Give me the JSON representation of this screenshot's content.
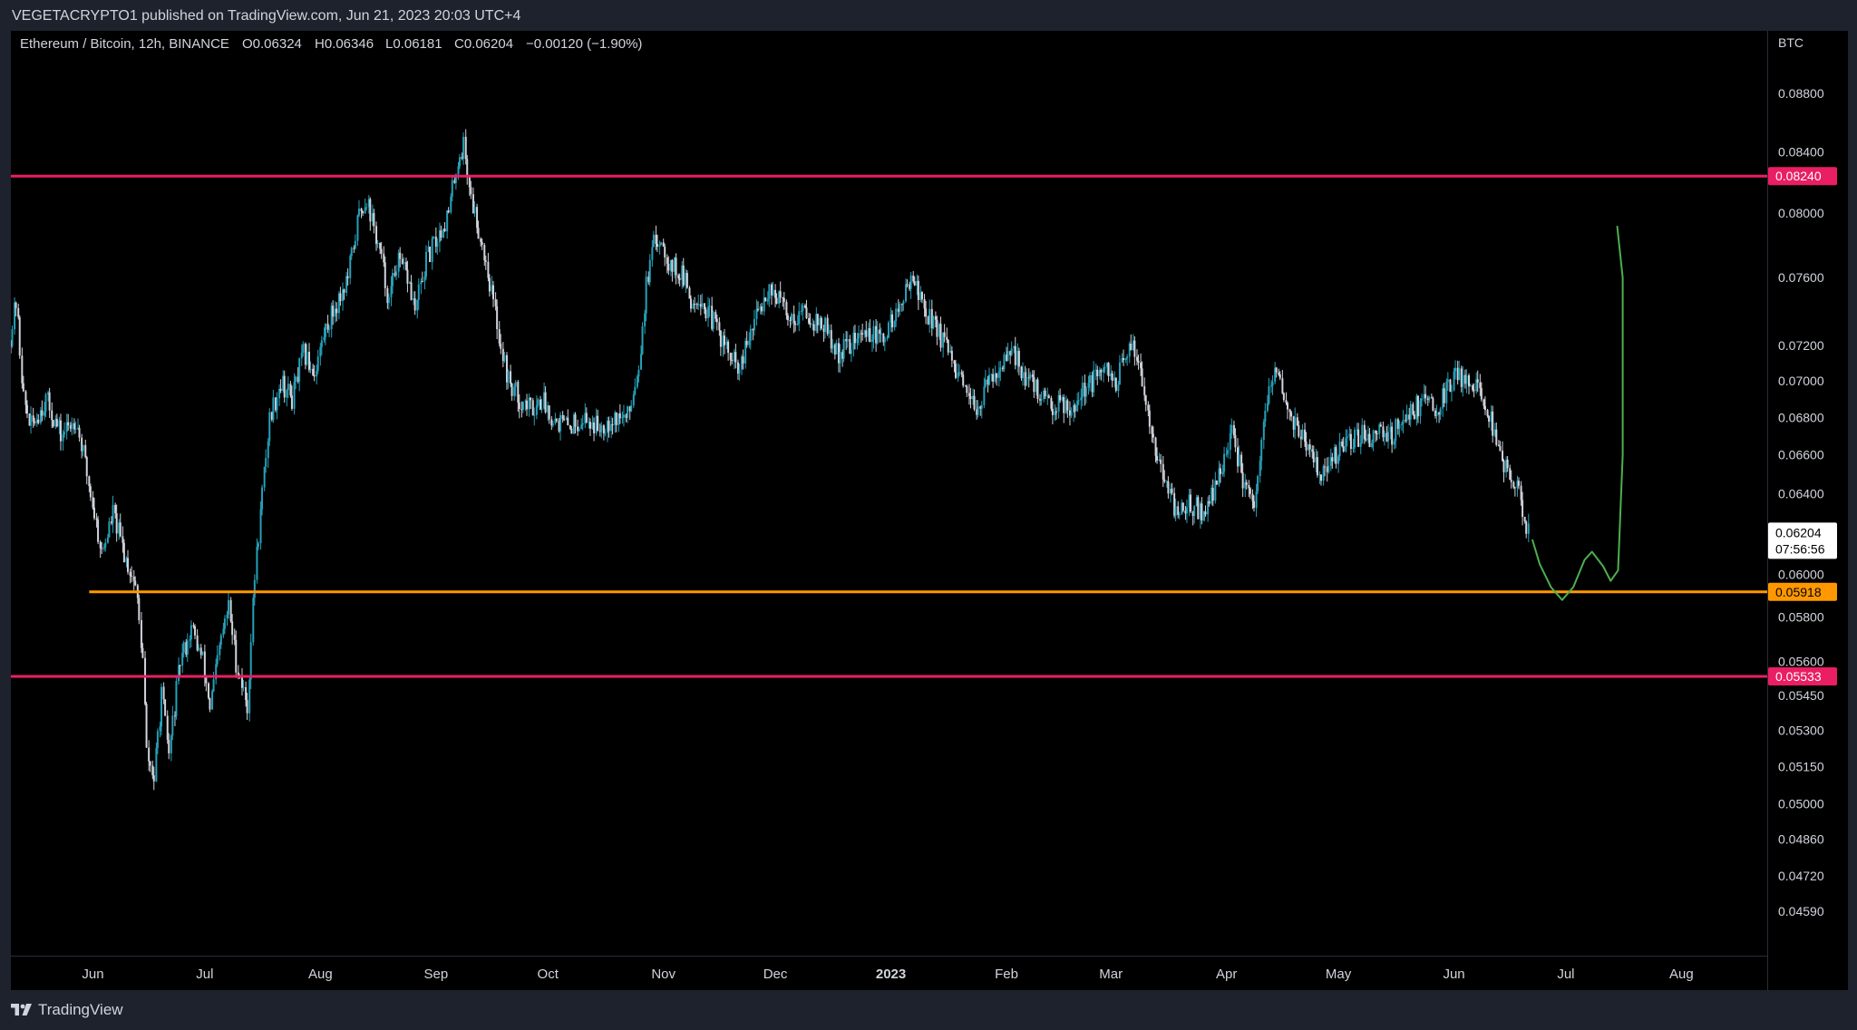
{
  "header": {
    "publish_info": "VEGETACRYPTO1 published on TradingView.com, Jun 21, 2023 20:03 UTC+4"
  },
  "legend": {
    "symbol": "Ethereum / Bitcoin, 12h, BINANCE",
    "open": "O0.06324",
    "high": "H0.06346",
    "low": "L0.06181",
    "close": "C0.06204",
    "change": "−0.00120 (−1.90%)"
  },
  "footer": {
    "brand": "TradingView"
  },
  "colors": {
    "background": "#000000",
    "frame": "#1e222d",
    "candle_up": "#26a0b8",
    "candle_down": "#d1d4dc",
    "resistance": "#e91e63",
    "support": "#ff9800",
    "projection": "#4caf50",
    "axis_text": "#d1d4dc"
  },
  "chart_data": {
    "type": "candlestick",
    "title": "Ethereum / Bitcoin, 12h, BINANCE",
    "y_axis_unit": "BTC",
    "y_scale": "log",
    "ylim": [
      0.0443,
      0.0925
    ],
    "y_ticks": [
      "0.08800",
      "0.08400",
      "0.08000",
      "0.07600",
      "0.07200",
      "0.07000",
      "0.06800",
      "0.06600",
      "0.06400",
      "0.06000",
      "0.05800",
      "0.05600",
      "0.05450",
      "0.05300",
      "0.05150",
      "0.05000",
      "0.04860",
      "0.04720",
      "0.04590"
    ],
    "x_range": [
      "2022-05-10",
      "2023-08-24"
    ],
    "x_ticks": [
      {
        "label": "Jun",
        "date": "2022-06-01"
      },
      {
        "label": "Jul",
        "date": "2022-07-01"
      },
      {
        "label": "Aug",
        "date": "2022-08-01"
      },
      {
        "label": "Sep",
        "date": "2022-09-01"
      },
      {
        "label": "Oct",
        "date": "2022-10-01"
      },
      {
        "label": "Nov",
        "date": "2022-11-01"
      },
      {
        "label": "Dec",
        "date": "2022-12-01"
      },
      {
        "label": "2023",
        "date": "2023-01-01",
        "bold": true
      },
      {
        "label": "Feb",
        "date": "2023-02-01"
      },
      {
        "label": "Mar",
        "date": "2023-03-01"
      },
      {
        "label": "Apr",
        "date": "2023-04-01"
      },
      {
        "label": "May",
        "date": "2023-05-01"
      },
      {
        "label": "Jun",
        "date": "2023-06-01"
      },
      {
        "label": "Jul",
        "date": "2023-07-01"
      },
      {
        "label": "Aug",
        "date": "2023-08-01"
      }
    ],
    "price_path": [
      [
        "2022-05-10",
        0.072
      ],
      [
        "2022-05-12",
        0.0745
      ],
      [
        "2022-05-14",
        0.069
      ],
      [
        "2022-05-16",
        0.0675
      ],
      [
        "2022-05-20",
        0.069
      ],
      [
        "2022-05-24",
        0.067
      ],
      [
        "2022-05-28",
        0.068
      ],
      [
        "2022-06-01",
        0.064
      ],
      [
        "2022-06-04",
        0.061
      ],
      [
        "2022-06-07",
        0.063
      ],
      [
        "2022-06-10",
        0.061
      ],
      [
        "2022-06-13",
        0.0595
      ],
      [
        "2022-06-15",
        0.056
      ],
      [
        "2022-06-16",
        0.052
      ],
      [
        "2022-06-18",
        0.051
      ],
      [
        "2022-06-20",
        0.0545
      ],
      [
        "2022-06-22",
        0.052
      ],
      [
        "2022-06-25",
        0.056
      ],
      [
        "2022-06-28",
        0.0575
      ],
      [
        "2022-07-01",
        0.056
      ],
      [
        "2022-07-03",
        0.054
      ],
      [
        "2022-07-06",
        0.057
      ],
      [
        "2022-07-08",
        0.0585
      ],
      [
        "2022-07-10",
        0.056
      ],
      [
        "2022-07-13",
        0.054
      ],
      [
        "2022-07-15",
        0.06
      ],
      [
        "2022-07-17",
        0.064
      ],
      [
        "2022-07-19",
        0.068
      ],
      [
        "2022-07-22",
        0.07
      ],
      [
        "2022-07-25",
        0.069
      ],
      [
        "2022-07-28",
        0.0715
      ],
      [
        "2022-07-31",
        0.0705
      ],
      [
        "2022-08-03",
        0.073
      ],
      [
        "2022-08-06",
        0.0745
      ],
      [
        "2022-08-09",
        0.076
      ],
      [
        "2022-08-12",
        0.08
      ],
      [
        "2022-08-14",
        0.081
      ],
      [
        "2022-08-16",
        0.079
      ],
      [
        "2022-08-18",
        0.077
      ],
      [
        "2022-08-20",
        0.0745
      ],
      [
        "2022-08-22",
        0.077
      ],
      [
        "2022-08-25",
        0.076
      ],
      [
        "2022-08-27",
        0.074
      ],
      [
        "2022-08-30",
        0.077
      ],
      [
        "2022-09-02",
        0.0785
      ],
      [
        "2022-09-05",
        0.08
      ],
      [
        "2022-09-07",
        0.083
      ],
      [
        "2022-09-09",
        0.0845
      ],
      [
        "2022-09-11",
        0.081
      ],
      [
        "2022-09-13",
        0.079
      ],
      [
        "2022-09-15",
        0.077
      ],
      [
        "2022-09-17",
        0.0745
      ],
      [
        "2022-09-19",
        0.072
      ],
      [
        "2022-09-21",
        0.07
      ],
      [
        "2022-09-24",
        0.069
      ],
      [
        "2022-09-27",
        0.0685
      ],
      [
        "2022-09-30",
        0.069
      ],
      [
        "2022-10-03",
        0.068
      ],
      [
        "2022-10-07",
        0.0675
      ],
      [
        "2022-10-11",
        0.068
      ],
      [
        "2022-10-15",
        0.0675
      ],
      [
        "2022-10-19",
        0.068
      ],
      [
        "2022-10-23",
        0.068
      ],
      [
        "2022-10-26",
        0.071
      ],
      [
        "2022-10-28",
        0.0755
      ],
      [
        "2022-10-30",
        0.078
      ],
      [
        "2022-11-01",
        0.0785
      ],
      [
        "2022-11-03",
        0.077
      ],
      [
        "2022-11-05",
        0.0765
      ],
      [
        "2022-11-07",
        0.076
      ],
      [
        "2022-11-09",
        0.0745
      ],
      [
        "2022-11-11",
        0.075
      ],
      [
        "2022-11-13",
        0.074
      ],
      [
        "2022-11-16",
        0.073
      ],
      [
        "2022-11-19",
        0.0715
      ],
      [
        "2022-11-22",
        0.0705
      ],
      [
        "2022-11-24",
        0.072
      ],
      [
        "2022-11-27",
        0.074
      ],
      [
        "2022-11-30",
        0.0755
      ],
      [
        "2022-12-03",
        0.0745
      ],
      [
        "2022-12-06",
        0.0735
      ],
      [
        "2022-12-09",
        0.074
      ],
      [
        "2022-12-12",
        0.0735
      ],
      [
        "2022-12-15",
        0.073
      ],
      [
        "2022-12-18",
        0.0715
      ],
      [
        "2022-12-21",
        0.072
      ],
      [
        "2022-12-24",
        0.0725
      ],
      [
        "2022-12-27",
        0.0728
      ],
      [
        "2022-12-30",
        0.0722
      ],
      [
        "2023-01-02",
        0.0735
      ],
      [
        "2023-01-05",
        0.0745
      ],
      [
        "2023-01-07",
        0.0765
      ],
      [
        "2023-01-09",
        0.075
      ],
      [
        "2023-01-11",
        0.074
      ],
      [
        "2023-01-14",
        0.073
      ],
      [
        "2023-01-17",
        0.0715
      ],
      [
        "2023-01-20",
        0.07
      ],
      [
        "2023-01-23",
        0.0685
      ],
      [
        "2023-01-26",
        0.069
      ],
      [
        "2023-01-29",
        0.0705
      ],
      [
        "2023-02-01",
        0.071
      ],
      [
        "2023-02-04",
        0.0715
      ],
      [
        "2023-02-07",
        0.07
      ],
      [
        "2023-02-10",
        0.0695
      ],
      [
        "2023-02-13",
        0.0685
      ],
      [
        "2023-02-16",
        0.069
      ],
      [
        "2023-02-19",
        0.0685
      ],
      [
        "2023-02-22",
        0.0695
      ],
      [
        "2023-02-25",
        0.07
      ],
      [
        "2023-02-28",
        0.0705
      ],
      [
        "2023-03-03",
        0.07
      ],
      [
        "2023-03-06",
        0.0715
      ],
      [
        "2023-03-08",
        0.072
      ],
      [
        "2023-03-10",
        0.07
      ],
      [
        "2023-03-12",
        0.068
      ],
      [
        "2023-03-14",
        0.066
      ],
      [
        "2023-03-16",
        0.0645
      ],
      [
        "2023-03-18",
        0.0635
      ],
      [
        "2023-03-20",
        0.063
      ],
      [
        "2023-03-23",
        0.0635
      ],
      [
        "2023-03-26",
        0.063
      ],
      [
        "2023-03-29",
        0.064
      ],
      [
        "2023-04-01",
        0.066
      ],
      [
        "2023-04-03",
        0.067
      ],
      [
        "2023-04-05",
        0.0655
      ],
      [
        "2023-04-07",
        0.064
      ],
      [
        "2023-04-09",
        0.063
      ],
      [
        "2023-04-11",
        0.0665
      ],
      [
        "2023-04-13",
        0.0695
      ],
      [
        "2023-04-15",
        0.0705
      ],
      [
        "2023-04-17",
        0.069
      ],
      [
        "2023-04-19",
        0.068
      ],
      [
        "2023-04-22",
        0.067
      ],
      [
        "2023-04-25",
        0.0655
      ],
      [
        "2023-04-28",
        0.065
      ],
      [
        "2023-05-01",
        0.066
      ],
      [
        "2023-05-04",
        0.0665
      ],
      [
        "2023-05-07",
        0.067
      ],
      [
        "2023-05-10",
        0.067
      ],
      [
        "2023-05-13",
        0.0675
      ],
      [
        "2023-05-16",
        0.067
      ],
      [
        "2023-05-19",
        0.068
      ],
      [
        "2023-05-22",
        0.0685
      ],
      [
        "2023-05-25",
        0.069
      ],
      [
        "2023-05-28",
        0.0685
      ],
      [
        "2023-05-31",
        0.0695
      ],
      [
        "2023-06-02",
        0.0705
      ],
      [
        "2023-06-05",
        0.07
      ],
      [
        "2023-06-07",
        0.07
      ],
      [
        "2023-06-09",
        0.069
      ],
      [
        "2023-06-11",
        0.068
      ],
      [
        "2023-06-13",
        0.067
      ],
      [
        "2023-06-15",
        0.0655
      ],
      [
        "2023-06-17",
        0.0645
      ],
      [
        "2023-06-19",
        0.064
      ],
      [
        "2023-06-20",
        0.063
      ],
      [
        "2023-06-21",
        0.062
      ]
    ],
    "annotations": {
      "resistance_line": {
        "value": 0.0824,
        "label": "0.08240"
      },
      "support_line": {
        "value": 0.05918,
        "label": "0.05918",
        "start_date": "2022-05-31"
      },
      "lower_line": {
        "value": 0.05533,
        "label": "0.05533"
      },
      "projection_path": [
        [
          "2023-06-22",
          0.0617
        ],
        [
          "2023-06-24",
          0.0605
        ],
        [
          "2023-06-27",
          0.0594
        ],
        [
          "2023-06-30",
          0.0588
        ],
        [
          "2023-07-03",
          0.0594
        ],
        [
          "2023-07-06",
          0.0607
        ],
        [
          "2023-07-08",
          0.0611
        ],
        [
          "2023-07-11",
          0.0604
        ],
        [
          "2023-07-13",
          0.0597
        ],
        [
          "2023-07-15",
          0.0602
        ],
        [
          "2023-07-16",
          0.066
        ],
        [
          "2023-07-16",
          0.076
        ],
        [
          "2023-07-15",
          0.0792
        ]
      ]
    },
    "last_price": {
      "value": 0.06204,
      "label": "0.06204",
      "countdown": "07:56:56"
    }
  }
}
